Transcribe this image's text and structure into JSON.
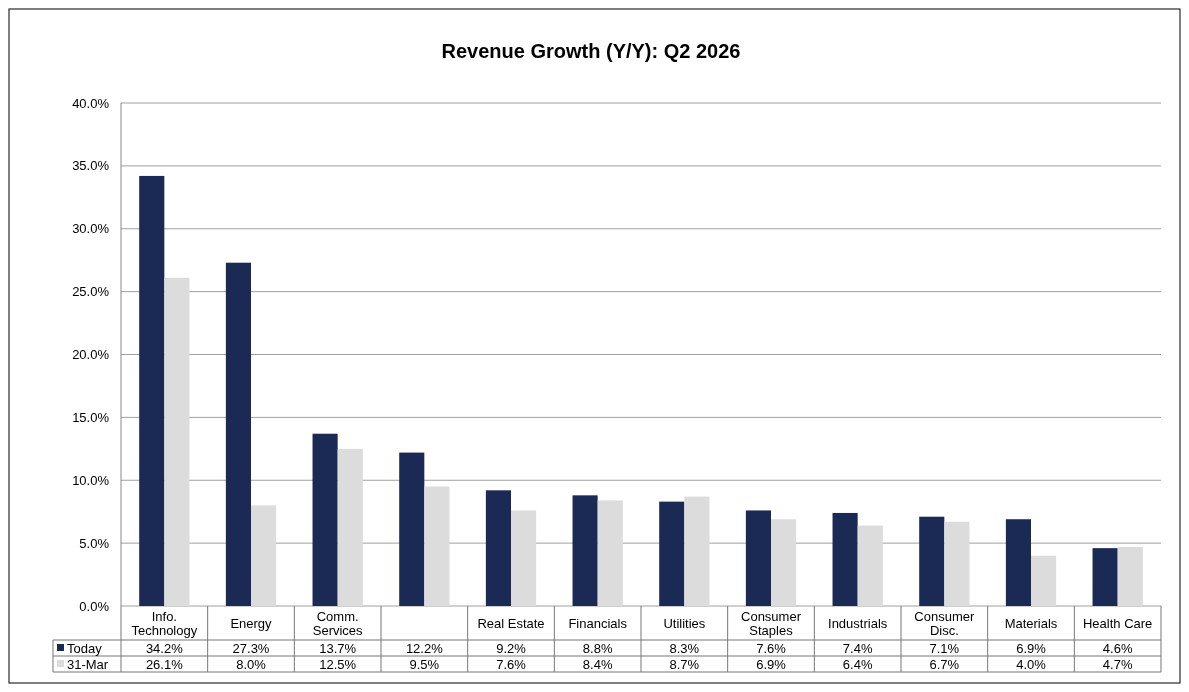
{
  "chart_data": {
    "type": "bar",
    "title": "Revenue Growth (Y/Y): Q2 2026",
    "categories": [
      "Info. Technology",
      "Energy",
      "Comm. Services",
      null,
      "Real Estate",
      "Financials",
      "Utilities",
      "Consumer Staples",
      "Industrials",
      "Consumer Disc.",
      "Materials",
      "Health Care"
    ],
    "series": [
      {
        "name": "Today",
        "color": "#1b2a55",
        "values": [
          34.2,
          27.3,
          13.7,
          12.2,
          9.2,
          8.8,
          8.3,
          7.6,
          7.4,
          7.1,
          6.9,
          4.6
        ],
        "value_labels": [
          "34.2%",
          "27.3%",
          "13.7%",
          "12.2%",
          "9.2%",
          "8.8%",
          "8.3%",
          "7.6%",
          "7.4%",
          "7.1%",
          "6.9%",
          "4.6%"
        ]
      },
      {
        "name": "31-Mar",
        "color": "#dcdcdc",
        "values": [
          26.1,
          8.0,
          12.5,
          9.5,
          7.6,
          8.4,
          8.7,
          6.9,
          6.4,
          6.7,
          4.0,
          4.7
        ],
        "value_labels": [
          "26.1%",
          "8.0%",
          "12.5%",
          "9.5%",
          "7.6%",
          "8.4%",
          "8.7%",
          "6.9%",
          "6.4%",
          "6.7%",
          "4.0%",
          "4.7%"
        ]
      }
    ],
    "ylim": [
      0,
      40
    ],
    "yticks": [
      {
        "value": 0,
        "label": "0.0%"
      },
      {
        "value": 5,
        "label": "5.0%"
      },
      {
        "value": 10,
        "label": "10.0%"
      },
      {
        "value": 15,
        "label": "15.0%"
      },
      {
        "value": 20,
        "label": "20.0%"
      },
      {
        "value": 25,
        "label": "25.0%"
      },
      {
        "value": 30,
        "label": "30.0%"
      },
      {
        "value": 35,
        "label": "35.0%"
      },
      {
        "value": 40,
        "label": "40.0%"
      }
    ],
    "grid": "y",
    "legend": "bottom"
  }
}
